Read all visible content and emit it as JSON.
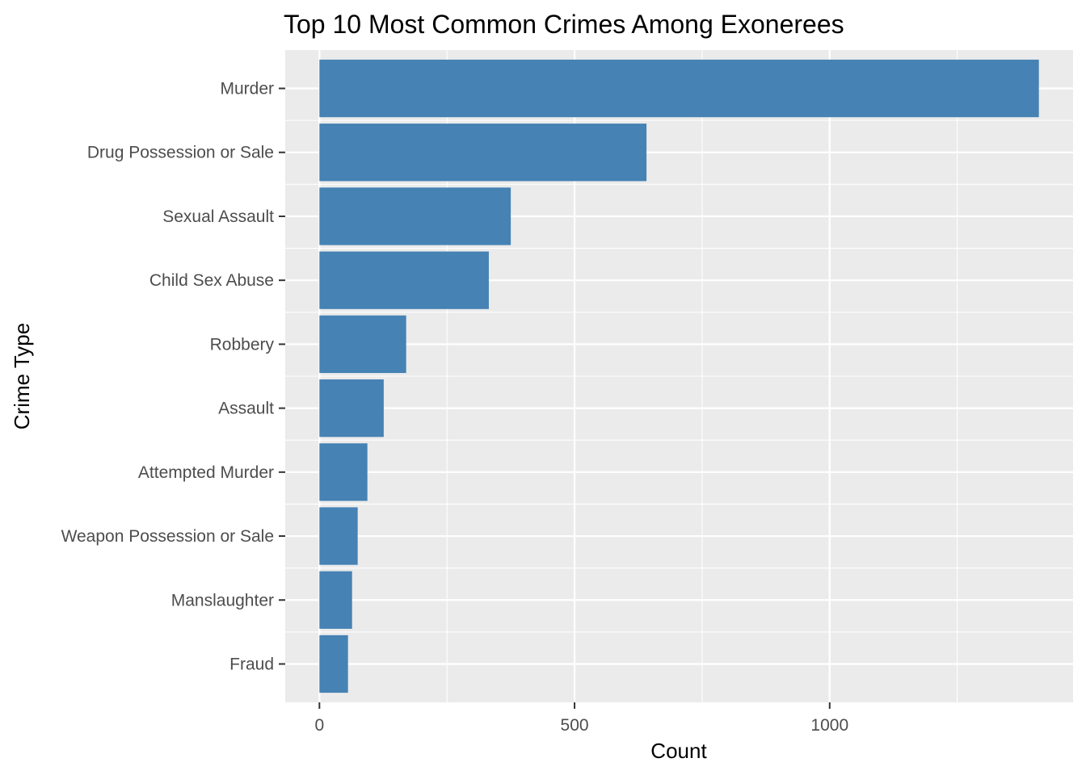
{
  "chart_data": {
    "type": "bar",
    "orientation": "horizontal",
    "title": "Top 10 Most Common Crimes Among Exonerees",
    "xlabel": "Count",
    "ylabel": "Crime Type",
    "categories": [
      "Murder",
      "Drug Possession or Sale",
      "Sexual Assault",
      "Child Sex Abuse",
      "Robbery",
      "Assault",
      "Attempted Murder",
      "Weapon Possession or Sale",
      "Manslaughter",
      "Fraud"
    ],
    "values": [
      1410,
      641,
      375,
      332,
      170,
      126,
      94,
      75,
      64,
      56
    ],
    "xlim": [
      -67,
      1477
    ],
    "xticks": [
      0,
      500,
      1000
    ],
    "xtick_labels": [
      "0",
      "500",
      "1000"
    ],
    "bar_color": "#4682b4",
    "panel_background": "#ebebeb",
    "grid": true,
    "legend": "none"
  }
}
